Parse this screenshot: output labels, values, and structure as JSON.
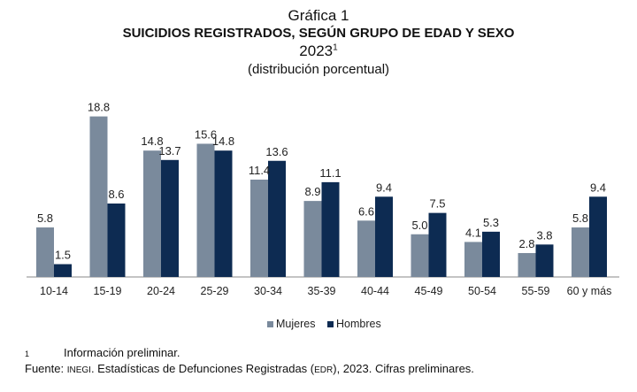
{
  "header": {
    "figure_label": "Gráfica 1",
    "title": "SUICIDIOS REGISTRADOS, SEGÚN GRUPO DE EDAD Y SEXO",
    "year": "2023",
    "year_note_mark": "1",
    "subtitle": "(distribución porcentual)"
  },
  "chart_data": {
    "type": "bar",
    "categories": [
      "10-14",
      "15-19",
      "20-24",
      "25-29",
      "30-34",
      "35-39",
      "40-44",
      "45-49",
      "50-54",
      "55-59",
      "60 y más"
    ],
    "series": [
      {
        "name": "Mujeres",
        "color": "#7a8a9c",
        "values": [
          5.8,
          18.8,
          14.8,
          15.6,
          11.4,
          8.9,
          6.6,
          5.0,
          4.1,
          2.8,
          5.8
        ]
      },
      {
        "name": "Hombres",
        "color": "#0d2b52",
        "values": [
          1.5,
          8.6,
          13.7,
          14.8,
          13.6,
          11.1,
          9.4,
          7.5,
          5.3,
          3.8,
          9.4
        ]
      }
    ],
    "ylim": [
      0,
      20
    ],
    "grid": false,
    "legend_position": "bottom"
  },
  "footnotes": {
    "note_mark": "1",
    "note_text": "Información preliminar.",
    "source_prefix": "Fuente: ",
    "source_org": "INEGI",
    "source_mid": ". Estadísticas de Defunciones Registradas (",
    "source_abbr": "EDR",
    "source_end": "), 2023. Cifras preliminares."
  }
}
